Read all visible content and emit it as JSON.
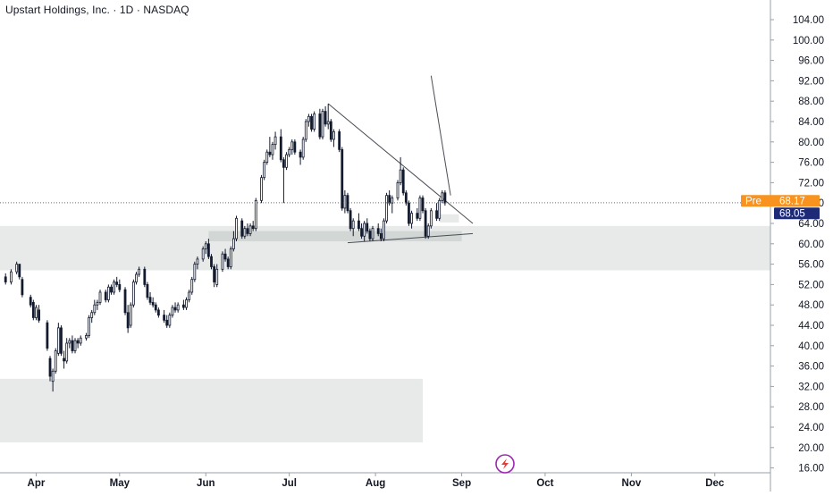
{
  "header": {
    "title": "Upstart Holdings, Inc. · 1D · NASDAQ"
  },
  "colors": {
    "candle": "#131a2e",
    "zone": "#dfe3e2",
    "zone_dark": "#cfd5d3",
    "trendline": "#4a4d55",
    "pre_tag": "#f7931e",
    "last_tag": "#1e2a78",
    "axis_line": "#9aa0a6",
    "logo": "#9c27b0"
  },
  "logo_icon": "tradingview-flash-icon",
  "chart_data": {
    "type": "candlestick",
    "title": "Upstart Holdings, Inc. · 1D · NASDAQ",
    "ylim": [
      15,
      107
    ],
    "y_ticks": [
      "104.00",
      "100.00",
      "96.00",
      "92.00",
      "88.00",
      "84.00",
      "80.00",
      "76.00",
      "72.00",
      "68.00",
      "64.00",
      "60.00",
      "56.00",
      "52.00",
      "48.00",
      "44.00",
      "40.00",
      "36.00",
      "32.00",
      "28.00",
      "24.00",
      "20.00",
      "16.00"
    ],
    "x_ticks": [
      {
        "label": "Apr",
        "day": 8
      },
      {
        "label": "May",
        "day": 38
      },
      {
        "label": "Jun",
        "day": 69
      },
      {
        "label": "Jul",
        "day": 99
      },
      {
        "label": "Aug",
        "day": 130
      },
      {
        "label": "Sep",
        "day": 161
      },
      {
        "label": "Oct",
        "day": 191
      },
      {
        "label": "Nov",
        "day": 222
      },
      {
        "label": "Dec",
        "day": 252
      }
    ],
    "xlim": [
      -5,
      272
    ],
    "price_tags": {
      "pre": {
        "label": "Pre",
        "value": "68.17"
      },
      "last": {
        "value": "68.05"
      }
    },
    "candles": [
      [
        -3,
        53.5,
        54.2,
        52.0,
        52.5
      ],
      [
        -1,
        52.5,
        55.0,
        52.0,
        54.5
      ],
      [
        1,
        54.5,
        56.5,
        54.0,
        56.0
      ],
      [
        2,
        56.0,
        56.0,
        53.0,
        53.5
      ],
      [
        3,
        53.0,
        53.5,
        49.5,
        50.0
      ],
      [
        6,
        49.5,
        50.0,
        47.5,
        48.0
      ],
      [
        7,
        48.5,
        49.0,
        45.0,
        45.5
      ],
      [
        8,
        45.5,
        48.0,
        45.0,
        47.5
      ],
      [
        9,
        47.0,
        48.0,
        44.5,
        45.0
      ],
      [
        12,
        44.5,
        45.0,
        39.0,
        39.5
      ],
      [
        13,
        37.5,
        38.0,
        33.0,
        34.0
      ],
      [
        14,
        33.0,
        35.5,
        31.0,
        35.0
      ],
      [
        15,
        35.0,
        39.5,
        34.5,
        39.0
      ],
      [
        16,
        38.5,
        44.5,
        38.0,
        43.5
      ],
      [
        17,
        43.5,
        44.0,
        38.0,
        38.5
      ],
      [
        18,
        37.5,
        39.0,
        35.5,
        37.0
      ],
      [
        19,
        37.0,
        41.5,
        36.5,
        40.5
      ],
      [
        20,
        40.5,
        41.5,
        39.5,
        41.0
      ],
      [
        21,
        41.0,
        42.0,
        38.5,
        39.0
      ],
      [
        22,
        39.0,
        41.5,
        38.5,
        41.0
      ],
      [
        23,
        41.0,
        41.5,
        39.5,
        40.5
      ],
      [
        24,
        40.5,
        42.0,
        40.0,
        41.5
      ],
      [
        26,
        41.5,
        42.5,
        41.0,
        42.0
      ],
      [
        27,
        42.0,
        46.0,
        41.5,
        45.5
      ],
      [
        28,
        45.5,
        47.0,
        44.5,
        46.5
      ],
      [
        29,
        46.5,
        49.0,
        46.0,
        48.0
      ],
      [
        30,
        48.0,
        49.0,
        47.0,
        48.5
      ],
      [
        31,
        48.5,
        51.0,
        48.0,
        50.5
      ],
      [
        33,
        50.5,
        51.0,
        48.5,
        49.0
      ],
      [
        34,
        49.0,
        52.0,
        48.5,
        51.5
      ],
      [
        35,
        51.5,
        52.0,
        50.0,
        50.5
      ],
      [
        36,
        50.5,
        53.0,
        50.0,
        52.5
      ],
      [
        37,
        52.5,
        53.5,
        51.5,
        52.0
      ],
      [
        38,
        52.0,
        53.0,
        50.5,
        51.0
      ],
      [
        40,
        51.0,
        51.5,
        46.0,
        46.5
      ],
      [
        41,
        46.5,
        48.0,
        42.5,
        43.5
      ],
      [
        42,
        44.0,
        48.5,
        43.5,
        48.0
      ],
      [
        43,
        48.0,
        53.0,
        47.5,
        52.5
      ],
      [
        44,
        52.5,
        54.5,
        52.0,
        54.0
      ],
      [
        45,
        54.0,
        55.5,
        53.5,
        55.0
      ],
      [
        47,
        55.0,
        55.5,
        51.5,
        52.0
      ],
      [
        48,
        52.0,
        52.5,
        49.0,
        49.5
      ],
      [
        49,
        49.5,
        50.5,
        48.0,
        48.5
      ],
      [
        50,
        48.5,
        49.5,
        47.5,
        48.0
      ],
      [
        51,
        48.0,
        48.5,
        46.5,
        47.0
      ],
      [
        52,
        47.0,
        47.5,
        45.5,
        46.0
      ],
      [
        54,
        46.0,
        47.0,
        44.5,
        45.0
      ],
      [
        55,
        45.0,
        46.0,
        43.5,
        44.0
      ],
      [
        56,
        44.0,
        46.5,
        43.5,
        46.0
      ],
      [
        57,
        46.0,
        48.0,
        45.5,
        47.5
      ],
      [
        58,
        47.5,
        48.5,
        46.5,
        47.0
      ],
      [
        59,
        47.0,
        48.5,
        46.5,
        48.0
      ],
      [
        61,
        48.0,
        49.0,
        47.0,
        47.5
      ],
      [
        62,
        47.5,
        49.5,
        47.0,
        49.0
      ],
      [
        63,
        49.0,
        51.0,
        48.5,
        50.5
      ],
      [
        64,
        50.5,
        53.5,
        50.0,
        53.0
      ],
      [
        65,
        53.0,
        56.5,
        52.5,
        56.0
      ],
      [
        66,
        56.0,
        57.5,
        55.0,
        57.0
      ],
      [
        68,
        57.0,
        59.5,
        56.5,
        59.0
      ],
      [
        69,
        59.0,
        60.5,
        58.0,
        60.0
      ],
      [
        70,
        60.0,
        61.0,
        57.0,
        57.5
      ],
      [
        71,
        57.5,
        58.0,
        55.0,
        55.5
      ],
      [
        72,
        55.5,
        56.0,
        51.5,
        52.5
      ],
      [
        73,
        52.0,
        56.0,
        51.5,
        55.0
      ],
      [
        75,
        55.0,
        58.5,
        54.5,
        58.0
      ],
      [
        76,
        58.0,
        59.0,
        56.5,
        57.0
      ],
      [
        77,
        57.0,
        57.5,
        55.0,
        55.5
      ],
      [
        78,
        55.5,
        59.5,
        55.0,
        59.0
      ],
      [
        79,
        59.0,
        62.5,
        58.5,
        61.0
      ],
      [
        80,
        61.0,
        65.5,
        60.5,
        65.0
      ],
      [
        82,
        64.5,
        65.0,
        61.0,
        61.5
      ],
      [
        83,
        61.5,
        63.5,
        61.0,
        63.0
      ],
      [
        84,
        63.0,
        64.0,
        61.5,
        62.0
      ],
      [
        85,
        62.0,
        64.0,
        61.5,
        63.5
      ],
      [
        86,
        63.5,
        64.5,
        62.5,
        63.0
      ],
      [
        87,
        63.0,
        69.0,
        62.5,
        68.5
      ],
      [
        89,
        68.5,
        73.5,
        68.0,
        73.0
      ],
      [
        90,
        73.0,
        76.5,
        72.5,
        76.0
      ],
      [
        91,
        76.0,
        78.5,
        75.5,
        78.0
      ],
      [
        92,
        78.0,
        81.0,
        77.0,
        77.5
      ],
      [
        93,
        77.5,
        80.0,
        76.5,
        79.5
      ],
      [
        94,
        79.5,
        82.0,
        78.5,
        81.0
      ],
      [
        96,
        81.0,
        82.5,
        76.0,
        76.5
      ],
      [
        97,
        76.5,
        77.0,
        68.0,
        75.0
      ],
      [
        98,
        75.0,
        78.0,
        74.5,
        77.5
      ],
      [
        99,
        77.5,
        79.0,
        77.0,
        78.5
      ],
      [
        100,
        78.5,
        80.5,
        77.5,
        80.0
      ],
      [
        101,
        80.0,
        80.5,
        77.5,
        78.0
      ],
      [
        103,
        78.0,
        78.5,
        75.5,
        77.0
      ],
      [
        104,
        77.0,
        81.0,
        76.5,
        80.5
      ],
      [
        105,
        80.5,
        84.5,
        80.0,
        84.0
      ],
      [
        106,
        84.0,
        85.5,
        83.0,
        85.0
      ],
      [
        107,
        85.0,
        85.5,
        82.0,
        82.5
      ],
      [
        108,
        82.5,
        86.0,
        82.0,
        85.5
      ],
      [
        110,
        85.5,
        86.5,
        80.5,
        81.0
      ],
      [
        111,
        81.0,
        86.5,
        80.5,
        86.0
      ],
      [
        112,
        86.0,
        87.0,
        83.0,
        83.5
      ],
      [
        113,
        83.5,
        87.5,
        82.5,
        84.0
      ],
      [
        114,
        84.0,
        84.5,
        80.0,
        80.5
      ],
      [
        115,
        80.5,
        82.5,
        79.0,
        82.0
      ],
      [
        117,
        82.0,
        82.5,
        78.0,
        78.5
      ],
      [
        118,
        78.5,
        79.0,
        66.5,
        67.0
      ],
      [
        119,
        67.0,
        70.5,
        66.0,
        69.5
      ],
      [
        120,
        69.5,
        70.0,
        66.0,
        66.5
      ],
      [
        121,
        66.5,
        67.0,
        62.5,
        63.0
      ],
      [
        122,
        63.0,
        65.0,
        61.5,
        64.5
      ],
      [
        124,
        64.5,
        66.0,
        62.5,
        63.0
      ],
      [
        125,
        63.0,
        64.0,
        61.0,
        61.5
      ],
      [
        126,
        61.5,
        64.5,
        60.5,
        64.0
      ],
      [
        127,
        64.0,
        65.0,
        62.0,
        62.5
      ],
      [
        128,
        62.5,
        63.0,
        60.5,
        61.0
      ],
      [
        129,
        61.0,
        63.5,
        60.5,
        63.0
      ],
      [
        131,
        63.0,
        64.0,
        61.5,
        62.0
      ],
      [
        132,
        62.0,
        63.0,
        60.5,
        61.0
      ],
      [
        133,
        61.0,
        65.0,
        60.5,
        64.5
      ],
      [
        134,
        64.5,
        70.0,
        64.0,
        69.5
      ],
      [
        135,
        69.5,
        70.5,
        67.5,
        68.0
      ],
      [
        136,
        68.0,
        69.5,
        66.0,
        69.0
      ],
      [
        138,
        69.0,
        72.5,
        68.5,
        72.0
      ],
      [
        139,
        72.0,
        77.0,
        71.5,
        74.5
      ],
      [
        140,
        74.5,
        75.0,
        69.5,
        70.0
      ],
      [
        141,
        70.0,
        70.5,
        67.5,
        68.0
      ],
      [
        142,
        68.0,
        68.5,
        63.5,
        64.0
      ],
      [
        143,
        64.0,
        66.5,
        63.0,
        66.0
      ],
      [
        145,
        66.0,
        67.0,
        64.5,
        65.0
      ],
      [
        146,
        65.0,
        69.5,
        64.5,
        69.0
      ],
      [
        147,
        69.0,
        69.5,
        66.0,
        66.5
      ],
      [
        148,
        66.5,
        67.0,
        61.0,
        61.5
      ],
      [
        149,
        61.5,
        64.0,
        61.0,
        63.5
      ],
      [
        150,
        63.5,
        67.0,
        63.0,
        66.5
      ],
      [
        152,
        66.5,
        68.0,
        64.5,
        65.0
      ],
      [
        153,
        65.0,
        69.0,
        64.5,
        68.5
      ],
      [
        154,
        68.5,
        70.5,
        68.0,
        70.0
      ],
      [
        155,
        70.0,
        70.5,
        67.5,
        68.0
      ]
    ],
    "zones": [
      {
        "x0": -5,
        "x1": 272,
        "y0": 54.8,
        "y1": 63.5
      },
      {
        "x0": 70,
        "x1": 161,
        "y0": 60.5,
        "y1": 62.5
      },
      {
        "x0": -5,
        "x1": 147,
        "y0": 21.0,
        "y1": 33.5
      },
      {
        "x0": 153,
        "x1": 160,
        "y0": 64.2,
        "y1": 65.8
      }
    ],
    "lines": [
      {
        "x1": 113,
        "y1": 87.5,
        "x2": 165,
        "y2": 64.0
      },
      {
        "x1": 120,
        "y1": 60.2,
        "x2": 165,
        "y2": 62.0
      },
      {
        "x1": 150,
        "y1": 93.0,
        "x2": 157,
        "y2": 69.5
      }
    ]
  }
}
